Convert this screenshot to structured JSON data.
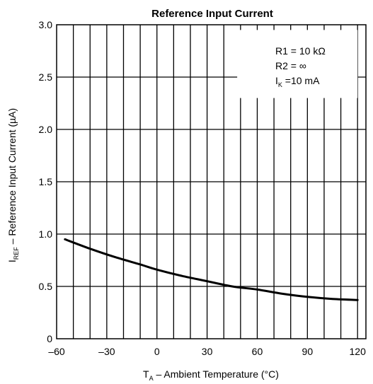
{
  "chart_data": {
    "type": "line",
    "title": "Reference Input Current",
    "xlabel": {
      "main": "T",
      "sub": "A",
      "rest": " – Ambient Temperature (°C)"
    },
    "ylabel": {
      "main": "I",
      "sub": "REF",
      "rest": " – Reference Input Current (µA)"
    },
    "xlim": [
      -60,
      125
    ],
    "ylim": [
      0,
      3.0
    ],
    "x_ticks": [
      "–60",
      "–30",
      "0",
      "30",
      "60",
      "90",
      "120"
    ],
    "y_ticks": [
      "0",
      "0.5",
      "1.0",
      "1.5",
      "2.0",
      "2.5",
      "3.0"
    ],
    "grid": true,
    "annotation": {
      "line1": "R1 = 10 kΩ",
      "line2": "R2 = ∞",
      "line3_main": "I",
      "line3_sub": "K",
      "line3_rest": " =10 mA"
    },
    "series": [
      {
        "x": [
          -55,
          -40,
          -25,
          -10,
          0,
          15,
          30,
          45,
          60,
          75,
          90,
          105,
          120
        ],
        "y": [
          0.95,
          0.86,
          0.78,
          0.71,
          0.66,
          0.6,
          0.55,
          0.5,
          0.47,
          0.43,
          0.4,
          0.38,
          0.37
        ]
      }
    ]
  }
}
